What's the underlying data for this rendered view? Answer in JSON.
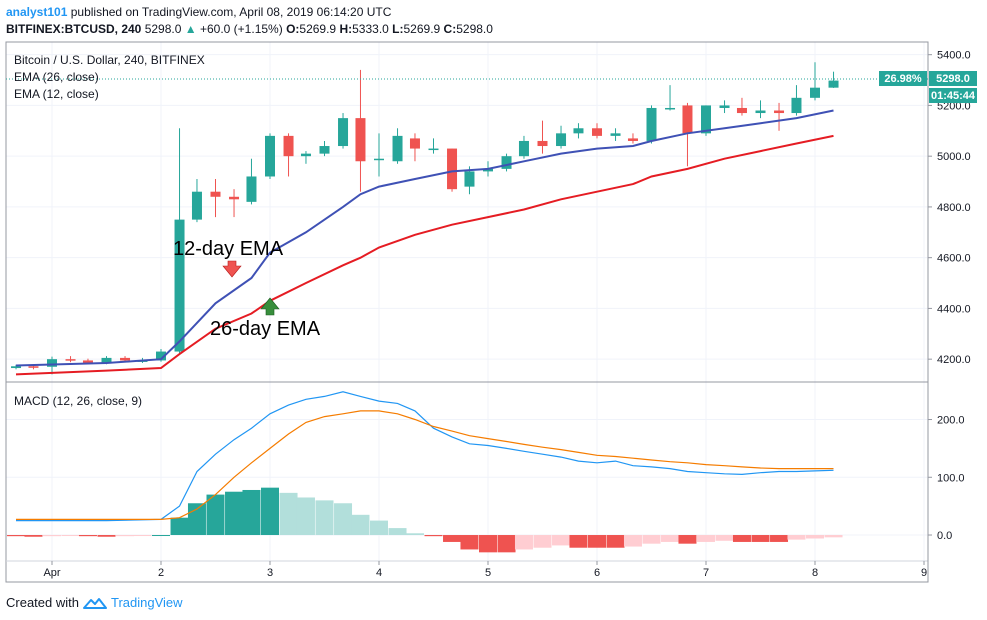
{
  "header": {
    "publisher": "analyst101",
    "published_text": "published on TradingView.com, April 08, 2019 06:14:20 UTC",
    "symbol": "BITFINEX:BTCUSD, 240",
    "last": "5298.0",
    "change": "+60.0 (+1.15%)",
    "o_label": "O:",
    "o": "5269.9",
    "h_label": "H:",
    "h": "5333.0",
    "l_label": "L:",
    "l": "5269.9",
    "c_label": "C:",
    "c": "5298.0"
  },
  "price_pane": {
    "legend_title": "Bitcoin / U.S. Dollar, 240, BITFINEX",
    "legend_ema26": "EMA (26, close)",
    "legend_ema12": "EMA (12, close)",
    "badge_pct": "26.98%",
    "badge_price": "5298.0",
    "badge_timer": "01:45:44",
    "annotation_ema12": "12-day EMA",
    "annotation_ema26": "26-day EMA"
  },
  "macd_pane": {
    "legend": "MACD (12, 26, close, 9)"
  },
  "footer": {
    "created_with": "Created with",
    "brand": "TradingView"
  },
  "colors": {
    "up": "#26a69a",
    "down": "#ef5350",
    "ema12": "#3f51b5",
    "ema26": "#e51c23",
    "macd": "#2196f3",
    "signal": "#f57c00",
    "hist_up_strong": "#26a69a",
    "hist_up_weak": "#b2dfdb",
    "hist_down_strong": "#ef5350",
    "hist_down_weak": "#ffcdd2"
  },
  "chart_data": [
    {
      "type": "candlestick",
      "title": "Bitcoin / U.S. Dollar, 240, BITFINEX",
      "x_unit": "day",
      "x_ticks": [
        {
          "x": 0,
          "label": "Apr"
        },
        {
          "x": 1,
          "label": "2"
        },
        {
          "x": 2,
          "label": "3"
        },
        {
          "x": 3,
          "label": "4"
        },
        {
          "x": 4,
          "label": "5"
        },
        {
          "x": 5,
          "label": "6"
        },
        {
          "x": 6,
          "label": "7"
        },
        {
          "x": 7,
          "label": "8"
        },
        {
          "x": 8,
          "label": "9"
        }
      ],
      "ylim": [
        4110,
        5450
      ],
      "y_ticks": [
        4200,
        4400,
        4600,
        4800,
        5000,
        5200,
        5400
      ],
      "y_tick_labels": [
        "4200.0",
        "4400.0",
        "4600.0",
        "4800.0",
        "5000.0",
        "5200.0",
        "5400.0"
      ],
      "last_price": 5298,
      "candles": [
        {
          "x": -0.33,
          "o": 4165,
          "h": 4178,
          "l": 4160,
          "c": 4172
        },
        {
          "x": -0.17,
          "o": 4172,
          "h": 4180,
          "l": 4160,
          "c": 4166
        },
        {
          "x": 0.0,
          "o": 4170,
          "h": 4210,
          "l": 4140,
          "c": 4200
        },
        {
          "x": 0.17,
          "o": 4200,
          "h": 4212,
          "l": 4188,
          "c": 4195
        },
        {
          "x": 0.33,
          "o": 4195,
          "h": 4202,
          "l": 4180,
          "c": 4185
        },
        {
          "x": 0.5,
          "o": 4185,
          "h": 4212,
          "l": 4180,
          "c": 4205
        },
        {
          "x": 0.67,
          "o": 4205,
          "h": 4212,
          "l": 4190,
          "c": 4195
        },
        {
          "x": 0.83,
          "o": 4195,
          "h": 4205,
          "l": 4185,
          "c": 4195
        },
        {
          "x": 1.0,
          "o": 4195,
          "h": 4240,
          "l": 4190,
          "c": 4230
        },
        {
          "x": 1.17,
          "o": 4230,
          "h": 5110,
          "l": 4220,
          "c": 4750
        },
        {
          "x": 1.33,
          "o": 4750,
          "h": 4910,
          "l": 4740,
          "c": 4860
        },
        {
          "x": 1.5,
          "o": 4860,
          "h": 4910,
          "l": 4760,
          "c": 4840
        },
        {
          "x": 1.67,
          "o": 4840,
          "h": 4870,
          "l": 4760,
          "c": 4830
        },
        {
          "x": 1.83,
          "o": 4820,
          "h": 4990,
          "l": 4810,
          "c": 4920
        },
        {
          "x": 2.0,
          "o": 4920,
          "h": 5090,
          "l": 4910,
          "c": 5080
        },
        {
          "x": 2.17,
          "o": 5080,
          "h": 5090,
          "l": 4920,
          "c": 5000
        },
        {
          "x": 2.33,
          "o": 5000,
          "h": 5020,
          "l": 4970,
          "c": 5010
        },
        {
          "x": 2.5,
          "o": 5010,
          "h": 5060,
          "l": 5000,
          "c": 5040
        },
        {
          "x": 2.67,
          "o": 5040,
          "h": 5170,
          "l": 5030,
          "c": 5150
        },
        {
          "x": 2.83,
          "o": 5150,
          "h": 5340,
          "l": 4860,
          "c": 4980
        },
        {
          "x": 3.0,
          "o": 4990,
          "h": 5090,
          "l": 4920,
          "c": 4990
        },
        {
          "x": 3.17,
          "o": 4980,
          "h": 5110,
          "l": 4970,
          "c": 5080
        },
        {
          "x": 3.33,
          "o": 5070,
          "h": 5090,
          "l": 4980,
          "c": 5030
        },
        {
          "x": 3.5,
          "o": 5030,
          "h": 5070,
          "l": 5010,
          "c": 5030
        },
        {
          "x": 3.67,
          "o": 5030,
          "h": 5030,
          "l": 4860,
          "c": 4870
        },
        {
          "x": 3.83,
          "o": 4880,
          "h": 4960,
          "l": 4850,
          "c": 4940
        },
        {
          "x": 4.0,
          "o": 4940,
          "h": 4980,
          "l": 4920,
          "c": 4950
        },
        {
          "x": 4.17,
          "o": 4950,
          "h": 5010,
          "l": 4940,
          "c": 5000
        },
        {
          "x": 4.33,
          "o": 5000,
          "h": 5080,
          "l": 4990,
          "c": 5060
        },
        {
          "x": 4.5,
          "o": 5060,
          "h": 5140,
          "l": 5010,
          "c": 5040
        },
        {
          "x": 4.67,
          "o": 5040,
          "h": 5120,
          "l": 5030,
          "c": 5090
        },
        {
          "x": 4.83,
          "o": 5090,
          "h": 5130,
          "l": 5070,
          "c": 5110
        },
        {
          "x": 5.0,
          "o": 5110,
          "h": 5130,
          "l": 5070,
          "c": 5080
        },
        {
          "x": 5.17,
          "o": 5080,
          "h": 5110,
          "l": 5060,
          "c": 5090
        },
        {
          "x": 5.33,
          "o": 5070,
          "h": 5090,
          "l": 5050,
          "c": 5060
        },
        {
          "x": 5.5,
          "o": 5060,
          "h": 5200,
          "l": 5050,
          "c": 5190
        },
        {
          "x": 5.67,
          "o": 5190,
          "h": 5280,
          "l": 5180,
          "c": 5190
        },
        {
          "x": 5.83,
          "o": 5200,
          "h": 5210,
          "l": 4960,
          "c": 5090
        },
        {
          "x": 6.0,
          "o": 5090,
          "h": 5200,
          "l": 5080,
          "c": 5200
        },
        {
          "x": 6.17,
          "o": 5190,
          "h": 5220,
          "l": 5170,
          "c": 5200
        },
        {
          "x": 6.33,
          "o": 5190,
          "h": 5230,
          "l": 5160,
          "c": 5170
        },
        {
          "x": 6.5,
          "o": 5170,
          "h": 5220,
          "l": 5150,
          "c": 5180
        },
        {
          "x": 6.67,
          "o": 5180,
          "h": 5210,
          "l": 5100,
          "c": 5170
        },
        {
          "x": 6.83,
          "o": 5170,
          "h": 5280,
          "l": 5160,
          "c": 5230
        },
        {
          "x": 7.0,
          "o": 5230,
          "h": 5370,
          "l": 5220,
          "c": 5270
        },
        {
          "x": 7.17,
          "o": 5270,
          "h": 5333,
          "l": 5269,
          "c": 5298
        }
      ]
    },
    {
      "type": "line",
      "series": [
        {
          "name": "EMA (12, close)",
          "points": [
            [
              -0.33,
              4175
            ],
            [
              0.5,
              4185
            ],
            [
              1.0,
              4200
            ],
            [
              1.17,
              4270
            ],
            [
              1.5,
              4420
            ],
            [
              1.83,
              4520
            ],
            [
              2.0,
              4620
            ],
            [
              2.33,
              4700
            ],
            [
              2.67,
              4800
            ],
            [
              2.83,
              4850
            ],
            [
              3.0,
              4880
            ],
            [
              3.33,
              4910
            ],
            [
              3.67,
              4940
            ],
            [
              4.0,
              4950
            ],
            [
              4.33,
              4980
            ],
            [
              4.67,
              5010
            ],
            [
              5.0,
              5030
            ],
            [
              5.33,
              5040
            ],
            [
              5.5,
              5060
            ],
            [
              5.83,
              5090
            ],
            [
              6.17,
              5110
            ],
            [
              6.5,
              5130
            ],
            [
              6.83,
              5150
            ],
            [
              7.17,
              5180
            ]
          ]
        },
        {
          "name": "EMA (26, close)",
          "points": [
            [
              -0.33,
              4140
            ],
            [
              0.5,
              4155
            ],
            [
              1.0,
              4165
            ],
            [
              1.17,
              4220
            ],
            [
              1.5,
              4320
            ],
            [
              1.83,
              4380
            ],
            [
              2.0,
              4430
            ],
            [
              2.33,
              4500
            ],
            [
              2.67,
              4570
            ],
            [
              2.83,
              4600
            ],
            [
              3.0,
              4640
            ],
            [
              3.33,
              4690
            ],
            [
              3.67,
              4730
            ],
            [
              4.0,
              4760
            ],
            [
              4.33,
              4790
            ],
            [
              4.67,
              4830
            ],
            [
              5.0,
              4860
            ],
            [
              5.33,
              4890
            ],
            [
              5.5,
              4920
            ],
            [
              5.83,
              4950
            ],
            [
              6.17,
              4990
            ],
            [
              6.5,
              5020
            ],
            [
              6.83,
              5050
            ],
            [
              7.17,
              5080
            ]
          ]
        }
      ]
    },
    {
      "type": "bar",
      "title": "MACD (12, 26, close, 9)",
      "ylim": [
        -45,
        265
      ],
      "y_ticks": [
        0,
        100,
        200
      ],
      "y_tick_labels": [
        "0.0",
        "100.0",
        "200.0"
      ],
      "histogram": {
        "x": [
          -0.33,
          -0.17,
          0.0,
          0.17,
          0.33,
          0.5,
          0.67,
          0.83,
          1.0,
          1.17,
          1.33,
          1.5,
          1.67,
          1.83,
          2.0,
          2.17,
          2.33,
          2.5,
          2.67,
          2.83,
          3.0,
          3.17,
          3.33,
          3.5,
          3.67,
          3.83,
          4.0,
          4.17,
          4.33,
          4.5,
          4.67,
          4.83,
          5.0,
          5.17,
          5.33,
          5.5,
          5.67,
          5.83,
          6.0,
          6.17,
          6.33,
          6.5,
          6.67,
          6.83,
          7.0,
          7.17
        ],
        "values": [
          -2,
          -3,
          -2,
          -1,
          -2,
          -3,
          -2,
          -1,
          0,
          30,
          55,
          70,
          75,
          78,
          82,
          73,
          65,
          60,
          55,
          35,
          25,
          12,
          3,
          -2,
          -12,
          -25,
          -30,
          -30,
          -25,
          -22,
          -18,
          -22,
          -22,
          -22,
          -20,
          -15,
          -12,
          -15,
          -12,
          -10,
          -12,
          -12,
          -12,
          -8,
          -6,
          -4
        ]
      },
      "series": [
        {
          "name": "MACD",
          "points": [
            [
              -0.33,
              25
            ],
            [
              0.5,
              25
            ],
            [
              1.0,
              27
            ],
            [
              1.17,
              50
            ],
            [
              1.33,
              110
            ],
            [
              1.5,
              140
            ],
            [
              1.67,
              165
            ],
            [
              1.83,
              185
            ],
            [
              2.0,
              210
            ],
            [
              2.17,
              225
            ],
            [
              2.33,
              235
            ],
            [
              2.5,
              240
            ],
            [
              2.67,
              248
            ],
            [
              2.83,
              240
            ],
            [
              3.0,
              232
            ],
            [
              3.17,
              228
            ],
            [
              3.33,
              215
            ],
            [
              3.5,
              185
            ],
            [
              3.67,
              170
            ],
            [
              3.83,
              158
            ],
            [
              4.0,
              155
            ],
            [
              4.17,
              150
            ],
            [
              4.33,
              145
            ],
            [
              4.5,
              140
            ],
            [
              4.67,
              135
            ],
            [
              4.83,
              128
            ],
            [
              5.0,
              125
            ],
            [
              5.17,
              128
            ],
            [
              5.33,
              120
            ],
            [
              5.5,
              118
            ],
            [
              5.67,
              115
            ],
            [
              5.83,
              110
            ],
            [
              6.0,
              108
            ],
            [
              6.17,
              106
            ],
            [
              6.33,
              105
            ],
            [
              6.5,
              108
            ],
            [
              6.67,
              110
            ],
            [
              6.83,
              110
            ],
            [
              7.0,
              111
            ],
            [
              7.17,
              112
            ]
          ]
        },
        {
          "name": "Signal",
          "points": [
            [
              -0.33,
              27
            ],
            [
              0.5,
              27
            ],
            [
              1.0,
              27
            ],
            [
              1.17,
              30
            ],
            [
              1.33,
              45
            ],
            [
              1.5,
              70
            ],
            [
              1.67,
              100
            ],
            [
              1.83,
              125
            ],
            [
              2.0,
              150
            ],
            [
              2.17,
              175
            ],
            [
              2.33,
              195
            ],
            [
              2.5,
              205
            ],
            [
              2.67,
              210
            ],
            [
              2.83,
              215
            ],
            [
              3.0,
              215
            ],
            [
              3.17,
              210
            ],
            [
              3.33,
              200
            ],
            [
              3.5,
              188
            ],
            [
              3.67,
              180
            ],
            [
              3.83,
              172
            ],
            [
              4.0,
              167
            ],
            [
              4.17,
              162
            ],
            [
              4.33,
              157
            ],
            [
              4.5,
              152
            ],
            [
              4.67,
              148
            ],
            [
              4.83,
              143
            ],
            [
              5.0,
              138
            ],
            [
              5.17,
              136
            ],
            [
              5.33,
              133
            ],
            [
              5.5,
              130
            ],
            [
              5.67,
              127
            ],
            [
              5.83,
              125
            ],
            [
              6.0,
              122
            ],
            [
              6.17,
              120
            ],
            [
              6.33,
              118
            ],
            [
              6.5,
              116
            ],
            [
              6.67,
              115
            ],
            [
              6.83,
              115
            ],
            [
              7.0,
              115
            ],
            [
              7.17,
              115
            ]
          ]
        }
      ]
    }
  ]
}
